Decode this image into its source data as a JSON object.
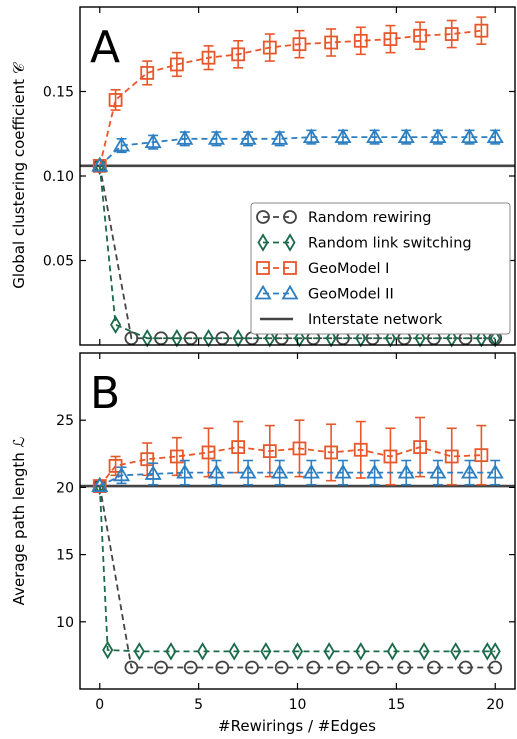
{
  "colors": {
    "random_rewiring": "#444444",
    "random_link_switching": "#1b6b4a",
    "geomodel_1": "#e8572a",
    "geomodel_2": "#2d7fc1",
    "interstate": "#444444"
  },
  "legend": {
    "random_rewiring": "Random rewiring",
    "random_link_switching": "Random link switching",
    "geomodel_1": "GeoModel I",
    "geomodel_2": "GeoModel II",
    "interstate": "Interstate network"
  },
  "xlabel": "#Rewirings / #Edges",
  "chart_data": [
    {
      "type": "line",
      "panel": "A",
      "ylabel": "Global clustering coefficient 𝒞",
      "xlim": [
        -1,
        21
      ],
      "ylim": [
        0,
        0.2
      ],
      "xticks": [
        "0",
        "5",
        "10",
        "15",
        "20"
      ],
      "yticks": [
        "0.05",
        "0.10",
        "0.15"
      ],
      "reference_line": {
        "name": "Interstate network",
        "y": 0.106
      },
      "series": [
        {
          "name": "Random rewiring",
          "marker": "circle",
          "x": [
            0,
            1.6,
            3.1,
            4.6,
            6.2,
            7.7,
            9.2,
            10.8,
            12.3,
            13.8,
            15.4,
            16.9,
            18.5,
            20
          ],
          "y": [
            0.106,
            0.004,
            0.004,
            0.004,
            0.004,
            0.004,
            0.004,
            0.004,
            0.004,
            0.004,
            0.004,
            0.004,
            0.004,
            0.004
          ]
        },
        {
          "name": "Random link switching",
          "marker": "diamond",
          "x": [
            0,
            0.8,
            2.4,
            3.9,
            5.5,
            7.0,
            8.6,
            10.1,
            11.7,
            13.2,
            14.7,
            16.2,
            17.8,
            19.3,
            20
          ],
          "y": [
            0.106,
            0.012,
            0.004,
            0.004,
            0.004,
            0.004,
            0.004,
            0.004,
            0.004,
            0.004,
            0.004,
            0.004,
            0.004,
            0.004,
            0.004
          ]
        },
        {
          "name": "GeoModel I",
          "marker": "square",
          "x": [
            0,
            0.8,
            2.4,
            3.9,
            5.5,
            7.0,
            8.6,
            10.1,
            11.7,
            13.2,
            14.7,
            16.2,
            17.8,
            19.3
          ],
          "y": [
            0.106,
            0.145,
            0.161,
            0.166,
            0.17,
            0.172,
            0.176,
            0.178,
            0.179,
            0.18,
            0.181,
            0.183,
            0.184,
            0.186
          ],
          "err": [
            0,
            0.006,
            0.007,
            0.007,
            0.007,
            0.008,
            0.008,
            0.008,
            0.008,
            0.008,
            0.008,
            0.008,
            0.008,
            0.008
          ]
        },
        {
          "name": "GeoModel II",
          "marker": "triangle",
          "x": [
            0,
            1.1,
            2.7,
            4.3,
            5.9,
            7.5,
            9.1,
            10.7,
            12.3,
            13.9,
            15.5,
            17.1,
            18.7,
            20
          ],
          "y": [
            0.106,
            0.118,
            0.12,
            0.122,
            0.122,
            0.122,
            0.122,
            0.123,
            0.123,
            0.123,
            0.123,
            0.123,
            0.123,
            0.123
          ],
          "err": [
            0,
            0.004,
            0.004,
            0.004,
            0.004,
            0.004,
            0.004,
            0.004,
            0.004,
            0.004,
            0.004,
            0.004,
            0.004,
            0.004
          ]
        }
      ]
    },
    {
      "type": "line",
      "panel": "B",
      "ylabel": "Average path length ℒ",
      "xlim": [
        -1,
        21
      ],
      "ylim": [
        5,
        30
      ],
      "xticks": [
        "0",
        "5",
        "10",
        "15",
        "20"
      ],
      "yticks": [
        "10",
        "15",
        "20",
        "25"
      ],
      "reference_line": {
        "name": "Interstate network",
        "y": 20.1
      },
      "series": [
        {
          "name": "Random rewiring",
          "marker": "circle",
          "x": [
            0,
            1.6,
            3.1,
            4.6,
            6.2,
            7.7,
            9.2,
            10.8,
            12.3,
            13.8,
            15.4,
            16.9,
            18.5,
            20
          ],
          "y": [
            20.1,
            6.6,
            6.6,
            6.6,
            6.6,
            6.6,
            6.6,
            6.6,
            6.6,
            6.6,
            6.6,
            6.6,
            6.6,
            6.6
          ]
        },
        {
          "name": "Random link switching",
          "marker": "diamond",
          "x": [
            0,
            0.4,
            2.0,
            3.6,
            5.2,
            6.8,
            8.4,
            10.0,
            11.6,
            13.2,
            14.8,
            16.4,
            18.0,
            19.6,
            20
          ],
          "y": [
            20.1,
            7.9,
            7.8,
            7.8,
            7.8,
            7.8,
            7.8,
            7.8,
            7.8,
            7.8,
            7.8,
            7.8,
            7.8,
            7.8,
            7.8
          ]
        },
        {
          "name": "GeoModel I",
          "marker": "square",
          "x": [
            0,
            0.8,
            2.4,
            3.9,
            5.5,
            7.0,
            8.6,
            10.1,
            11.7,
            13.2,
            14.7,
            16.2,
            17.8,
            19.3
          ],
          "y": [
            20.1,
            21.6,
            22.1,
            22.3,
            22.6,
            23.0,
            22.7,
            22.9,
            22.6,
            22.8,
            22.3,
            23.0,
            22.3,
            22.4
          ],
          "err": [
            0,
            0.7,
            1.2,
            1.4,
            1.8,
            1.9,
            1.9,
            2.1,
            2.1,
            2.1,
            2.1,
            2.2,
            2.1,
            2.2
          ]
        },
        {
          "name": "GeoModel II",
          "marker": "triangle",
          "x": [
            0,
            1.1,
            2.7,
            4.3,
            5.9,
            7.5,
            9.1,
            10.7,
            12.3,
            13.9,
            15.5,
            17.1,
            18.7,
            20
          ],
          "y": [
            20.1,
            20.9,
            21.0,
            21.1,
            21.1,
            21.1,
            21.1,
            21.1,
            21.1,
            21.1,
            21.1,
            21.1,
            21.1,
            21.1
          ],
          "err": [
            0,
            0.6,
            0.8,
            0.9,
            0.9,
            0.9,
            0.9,
            0.9,
            0.9,
            0.9,
            0.9,
            0.9,
            0.9,
            0.9
          ]
        }
      ]
    }
  ]
}
